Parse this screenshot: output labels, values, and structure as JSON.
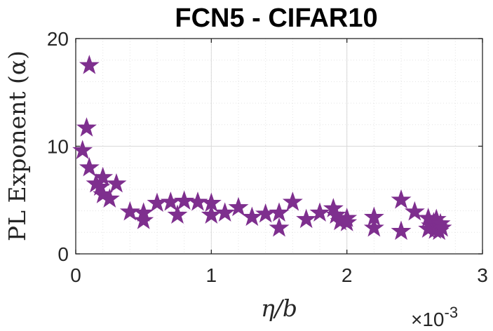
{
  "chart_data": {
    "type": "scatter",
    "title": "FCN5 - CIFAR10",
    "xlabel": "η/b",
    "ylabel": "PL Exponent (α)",
    "x_multiplier": "×10",
    "x_multiplier_exp": "-3",
    "xlim": [
      0,
      3
    ],
    "ylim": [
      0,
      20
    ],
    "x_ticks": [
      0,
      1,
      2,
      3
    ],
    "y_ticks": [
      0,
      10,
      20
    ],
    "x_tick_labels": [
      "0",
      "1",
      "2",
      "3"
    ],
    "y_tick_labels": [
      "0",
      "10",
      "20"
    ],
    "grid": true,
    "marker": "star",
    "marker_color": "#7e2f8e",
    "points": [
      {
        "x": 0.05,
        "y": 9.6
      },
      {
        "x": 0.08,
        "y": 11.7
      },
      {
        "x": 0.1,
        "y": 17.5
      },
      {
        "x": 0.1,
        "y": 8.0
      },
      {
        "x": 0.15,
        "y": 6.5
      },
      {
        "x": 0.18,
        "y": 6.2
      },
      {
        "x": 0.2,
        "y": 7.1
      },
      {
        "x": 0.2,
        "y": 5.5
      },
      {
        "x": 0.25,
        "y": 5.1
      },
      {
        "x": 0.3,
        "y": 6.5
      },
      {
        "x": 0.4,
        "y": 3.9
      },
      {
        "x": 0.5,
        "y": 3.8
      },
      {
        "x": 0.5,
        "y": 3.1
      },
      {
        "x": 0.6,
        "y": 4.7
      },
      {
        "x": 0.7,
        "y": 4.8
      },
      {
        "x": 0.75,
        "y": 3.6
      },
      {
        "x": 0.8,
        "y": 4.9
      },
      {
        "x": 0.9,
        "y": 4.8
      },
      {
        "x": 1.0,
        "y": 4.7
      },
      {
        "x": 1.0,
        "y": 3.6
      },
      {
        "x": 1.1,
        "y": 3.8
      },
      {
        "x": 1.2,
        "y": 4.3
      },
      {
        "x": 1.3,
        "y": 3.4
      },
      {
        "x": 1.4,
        "y": 3.7
      },
      {
        "x": 1.5,
        "y": 3.8
      },
      {
        "x": 1.5,
        "y": 2.4
      },
      {
        "x": 1.6,
        "y": 4.8
      },
      {
        "x": 1.7,
        "y": 3.2
      },
      {
        "x": 1.8,
        "y": 3.8
      },
      {
        "x": 1.9,
        "y": 4.2
      },
      {
        "x": 1.92,
        "y": 3.6
      },
      {
        "x": 1.95,
        "y": 3.0
      },
      {
        "x": 2.0,
        "y": 3.3
      },
      {
        "x": 2.0,
        "y": 2.9
      },
      {
        "x": 2.2,
        "y": 3.4
      },
      {
        "x": 2.2,
        "y": 2.4
      },
      {
        "x": 2.4,
        "y": 5.0
      },
      {
        "x": 2.4,
        "y": 2.1
      },
      {
        "x": 2.5,
        "y": 3.9
      },
      {
        "x": 2.6,
        "y": 3.3
      },
      {
        "x": 2.6,
        "y": 2.3
      },
      {
        "x": 2.62,
        "y": 2.6
      },
      {
        "x": 2.64,
        "y": 2.9
      },
      {
        "x": 2.65,
        "y": 2.2
      },
      {
        "x": 2.66,
        "y": 3.2
      },
      {
        "x": 2.67,
        "y": 2.5
      },
      {
        "x": 2.68,
        "y": 2.1
      },
      {
        "x": 2.69,
        "y": 2.8
      },
      {
        "x": 2.7,
        "y": 2.4
      }
    ]
  }
}
